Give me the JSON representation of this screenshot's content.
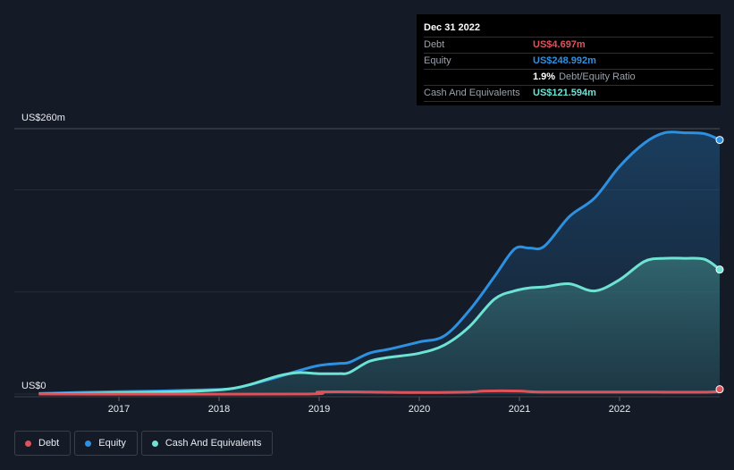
{
  "tooltip": {
    "date": "Dec 31 2022",
    "debt_label": "Debt",
    "debt_value": "US$4.697m",
    "equity_label": "Equity",
    "equity_value": "US$248.992m",
    "ratio_value": "1.9%",
    "ratio_label": "Debt/Equity Ratio",
    "cash_label": "Cash And Equivalents",
    "cash_value": "US$121.594m"
  },
  "colors": {
    "debt": "#e0525a",
    "equity": "#2e90e0",
    "cash": "#6ee3d3",
    "background": "#151b26"
  },
  "legend": {
    "items": [
      {
        "label": "Debt",
        "color": "#e0525a"
      },
      {
        "label": "Equity",
        "color": "#2e90e0"
      },
      {
        "label": "Cash And Equivalents",
        "color": "#6ee3d3"
      }
    ]
  },
  "chart_data": {
    "type": "area",
    "title": "",
    "ylabel": "",
    "xlabel": "",
    "y_top_label": "US$260m",
    "y_bottom_label": "US$0",
    "ylim": [
      0,
      260
    ],
    "xlim": [
      2016.2,
      2023.0
    ],
    "x_ticks": [
      2017,
      2018,
      2019,
      2020,
      2021,
      2022
    ],
    "x_tick_labels": [
      "2017",
      "2018",
      "2019",
      "2020",
      "2021",
      "2022"
    ],
    "gridlines_m": [
      0,
      100,
      200,
      260
    ],
    "series": [
      {
        "name": "Equity",
        "x": [
          2016.2,
          2016.8,
          2017.4,
          2017.8,
          2018.1,
          2018.3,
          2018.6,
          2018.8,
          2019.0,
          2019.2,
          2019.3,
          2019.5,
          2019.7,
          2020.0,
          2020.25,
          2020.5,
          2020.75,
          2020.95,
          2021.1,
          2021.25,
          2021.5,
          2021.75,
          2022.0,
          2022.25,
          2022.45,
          2022.65,
          2022.85,
          2023.0
        ],
        "values": [
          0.5,
          2,
          3,
          4,
          5,
          9,
          17,
          23,
          28,
          30,
          31,
          40,
          44,
          51,
          57,
          82,
          115,
          142,
          143,
          145,
          174,
          192,
          223,
          246,
          256,
          256,
          255,
          249
        ]
      },
      {
        "name": "Cash And Equivalents",
        "x": [
          2016.2,
          2016.8,
          2017.4,
          2017.8,
          2018.1,
          2018.3,
          2018.6,
          2018.8,
          2019.0,
          2019.2,
          2019.3,
          2019.5,
          2019.7,
          2020.0,
          2020.25,
          2020.5,
          2020.75,
          2020.95,
          2021.1,
          2021.25,
          2021.5,
          2021.75,
          2022.0,
          2022.25,
          2022.45,
          2022.65,
          2022.85,
          2023.0
        ],
        "values": [
          0.3,
          1,
          2,
          3,
          5,
          9,
          18,
          21,
          20,
          20,
          21,
          32,
          36,
          40,
          48,
          66,
          93,
          101,
          104,
          105,
          108,
          101,
          112,
          130,
          133,
          133,
          132,
          122
        ]
      },
      {
        "name": "Debt",
        "x": [
          2016.2,
          2018.8,
          2019.0,
          2019.5,
          2020.0,
          2020.5,
          2020.65,
          2021.0,
          2021.2,
          2022.0,
          2022.9,
          2023.0
        ],
        "values": [
          0,
          0,
          2,
          2,
          1.5,
          2,
          3,
          3,
          2,
          2,
          2,
          4.7
        ]
      }
    ]
  }
}
